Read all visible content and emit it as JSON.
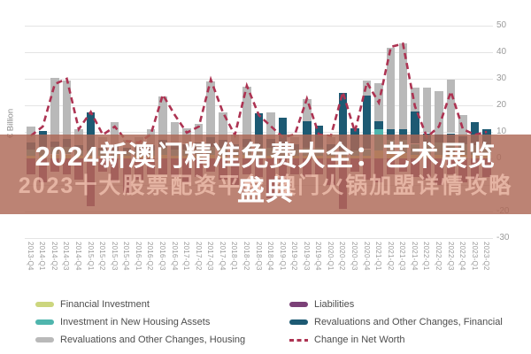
{
  "overlay": {
    "title_line1": "2024新澳门精准免费大全：艺术展览",
    "title_line2": "盛典",
    "watermark": "2023十大股票配资平台 澳门火锅加盟详情攻略",
    "banner_color": "rgba(173,104,86,0.82)"
  },
  "legend": {
    "left": [
      "fi",
      "nh",
      "rh"
    ],
    "right": [
      "li",
      "rf",
      "net"
    ]
  },
  "chart_data": {
    "type": "bar",
    "subtype": "stacked-bar-with-line",
    "title": "",
    "ylabel": "€ Billion",
    "xlabel": "",
    "ylim": [
      -30,
      50
    ],
    "y_ticks": [
      50,
      40,
      30,
      20,
      10,
      0,
      -10,
      -20,
      -30
    ],
    "grid": true,
    "legend_position": "bottom",
    "categories": [
      "2013-Q4",
      "2014-Q1",
      "2014-Q2",
      "2014-Q3",
      "2014-Q4",
      "2015-Q1",
      "2015-Q2",
      "2015-Q3",
      "2015-Q4",
      "2016-Q1",
      "2016-Q2",
      "2016-Q3",
      "2016-Q4",
      "2017-Q1",
      "2017-Q2",
      "2017-Q3",
      "2017-Q4",
      "2018-Q1",
      "2018-Q2",
      "2018-Q3",
      "2018-Q4",
      "2019-Q1",
      "2019-Q2",
      "2019-Q3",
      "2019-Q4",
      "2020-Q1",
      "2020-Q2",
      "2020-Q3",
      "2020-Q4",
      "2021-Q1",
      "2021-Q2",
      "2021-Q3",
      "2021-Q4",
      "2022-Q1",
      "2022-Q2",
      "2022-Q3",
      "2022-Q4",
      "2023-Q1",
      "2023-Q2"
    ],
    "series": [
      {
        "id": "fi",
        "label": "Financial Investment",
        "color": "#ccd67e",
        "values": [
          1,
          1,
          1.5,
          1.5,
          1,
          1,
          1,
          1,
          1,
          1,
          1,
          1.5,
          1,
          1,
          1,
          1.5,
          1,
          1,
          1.5,
          1,
          1,
          1,
          1,
          1,
          1,
          1,
          1,
          1,
          1,
          3,
          2,
          2,
          1.5,
          1.5,
          1.5,
          1.5,
          1.5,
          1.5,
          1.5
        ]
      },
      {
        "id": "nh",
        "label": "Investment in New Housing Assets",
        "color": "#4fb5ad",
        "values": [
          2.5,
          2,
          2.8,
          2.8,
          2,
          2,
          2,
          2,
          1.5,
          2,
          2,
          2.5,
          2.5,
          2.5,
          2.5,
          3,
          3,
          2.5,
          3,
          3,
          3,
          3,
          2.5,
          3,
          3,
          2,
          2,
          2,
          2.5,
          8,
          5,
          5,
          4,
          4,
          4.5,
          4.5,
          4,
          3.5,
          3
        ]
      },
      {
        "id": "rf",
        "label": "Revaluations and Other Changes, Financial",
        "color": "#1d5a73",
        "values": [
          2.5,
          7.3,
          2,
          3,
          2,
          14.3,
          1,
          2,
          1.5,
          1.5,
          2,
          3,
          2,
          2,
          2.5,
          3.5,
          3,
          2,
          3,
          13,
          3.4,
          11.3,
          2,
          10,
          8.4,
          2.5,
          21.7,
          8.5,
          20.2,
          3,
          4,
          4,
          12.3,
          4,
          3,
          3.5,
          3,
          8.7,
          6.5
        ]
      },
      {
        "id": "rh",
        "label": "Revaluations and Other Changes, Housing",
        "color": "#b9b9b9",
        "values": [
          6,
          0,
          24,
          22,
          6,
          0,
          4,
          8.7,
          3,
          3.5,
          6,
          16.2,
          8.1,
          5.8,
          7,
          21,
          10.4,
          3.5,
          19.5,
          0,
          10,
          0,
          2.5,
          8.4,
          0,
          2.5,
          0,
          0,
          5.8,
          14.2,
          30.6,
          32.2,
          9,
          17.2,
          16.2,
          20.2,
          8,
          0,
          0
        ]
      },
      {
        "id": "li",
        "label": "Liabilities",
        "color": "#7b4077",
        "values": [
          -6,
          -9,
          -5,
          -6,
          -8,
          -18,
          -5,
          -9,
          -13,
          -8,
          -6,
          -6,
          -7,
          -9,
          -7,
          -5,
          -8,
          -10,
          -6,
          -7,
          -15,
          -8,
          -6,
          -7,
          -6,
          -10,
          -19,
          -5,
          -8,
          -9,
          -6,
          -5,
          -7,
          -8,
          -10,
          -6,
          -9,
          -8,
          -7
        ]
      }
    ],
    "line": {
      "id": "net",
      "label": "Change in Net Worth",
      "color": "#ad3352",
      "style": "dashed",
      "values": [
        8.5,
        12,
        28,
        30,
        11,
        17.5,
        8.9,
        12,
        6.5,
        6,
        9,
        24,
        16.3,
        9.7,
        12,
        29.7,
        17.4,
        8.8,
        27.4,
        16.3,
        12.1,
        8,
        9,
        22.5,
        9,
        8.5,
        25,
        10,
        28.6,
        21,
        42,
        43.2,
        19.7,
        8,
        12,
        25.2,
        11,
        8.9,
        10
      ]
    }
  }
}
